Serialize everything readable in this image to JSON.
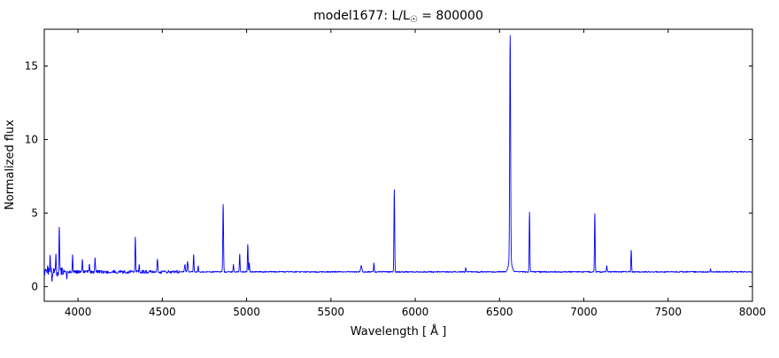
{
  "figure": {
    "background": "#ffffff",
    "axes_color": "#000000"
  },
  "chart_data": {
    "type": "line",
    "title": "model1677: L/L☉ = 800000",
    "title_parts": {
      "prefix": "model1677: L/L",
      "sub": "☉",
      "suffix": " = 800000"
    },
    "xlabel": "Wavelength [ Å ]",
    "ylabel": "Normalized flux",
    "xlim": [
      3800,
      8000
    ],
    "ylim": [
      -1,
      17.5
    ],
    "xticks": [
      4000,
      4500,
      5000,
      5500,
      6000,
      6500,
      7000,
      7500,
      8000
    ],
    "yticks": [
      0,
      5,
      10,
      15
    ],
    "grid": false,
    "legend": "none",
    "line_color": "#0000ff",
    "continuum": 1.0,
    "noise_regions": [
      {
        "below": 3920,
        "amp": 0.55
      },
      {
        "below": 4600,
        "amp": 0.2
      },
      {
        "below": 8001,
        "amp": 0.07
      }
    ],
    "emission_lines": [
      {
        "wavelength": 3820,
        "peak": 1.7,
        "sigma": 1.8
      },
      {
        "wavelength": 3835,
        "peak": 2.0,
        "sigma": 1.8
      },
      {
        "wavelength": 3869,
        "peak": 2.3,
        "sigma": 1.8
      },
      {
        "wavelength": 3889,
        "peak": 4.0,
        "sigma": 2.0
      },
      {
        "wavelength": 3968,
        "peak": 2.1,
        "sigma": 1.8
      },
      {
        "wavelength": 4026,
        "peak": 1.9,
        "sigma": 1.8
      },
      {
        "wavelength": 4068,
        "peak": 1.6,
        "sigma": 1.8
      },
      {
        "wavelength": 4101,
        "peak": 1.9,
        "sigma": 2.0
      },
      {
        "wavelength": 4340,
        "peak": 3.3,
        "sigma": 2.0
      },
      {
        "wavelength": 4363,
        "peak": 1.6,
        "sigma": 1.8
      },
      {
        "wavelength": 4471,
        "peak": 1.9,
        "sigma": 2.0
      },
      {
        "wavelength": 4634,
        "peak": 1.5,
        "sigma": 2.5
      },
      {
        "wavelength": 4650,
        "peak": 1.7,
        "sigma": 2.5
      },
      {
        "wavelength": 4686,
        "peak": 2.2,
        "sigma": 2.0
      },
      {
        "wavelength": 4713,
        "peak": 1.4,
        "sigma": 1.8
      },
      {
        "wavelength": 4861,
        "peak": 5.6,
        "sigma": 2.2
      },
      {
        "wavelength": 4922,
        "peak": 1.5,
        "sigma": 1.8
      },
      {
        "wavelength": 4959,
        "peak": 2.2,
        "sigma": 2.0
      },
      {
        "wavelength": 5007,
        "peak": 2.9,
        "sigma": 2.0
      },
      {
        "wavelength": 5016,
        "peak": 1.6,
        "sigma": 1.8
      },
      {
        "wavelength": 5680,
        "peak": 1.4,
        "sigma": 4.0
      },
      {
        "wavelength": 5755,
        "peak": 1.6,
        "sigma": 2.0
      },
      {
        "wavelength": 5876,
        "peak": 6.6,
        "sigma": 2.2
      },
      {
        "wavelength": 6300,
        "peak": 1.3,
        "sigma": 1.8
      },
      {
        "wavelength": 6563,
        "peak": 16.3,
        "sigma": 2.6
      },
      {
        "wavelength": 6563,
        "peak": 1.8,
        "sigma": 10.0
      },
      {
        "wavelength": 6678,
        "peak": 5.1,
        "sigma": 2.0
      },
      {
        "wavelength": 7065,
        "peak": 5.0,
        "sigma": 2.0
      },
      {
        "wavelength": 7136,
        "peak": 1.4,
        "sigma": 2.0
      },
      {
        "wavelength": 7281,
        "peak": 2.5,
        "sigma": 2.0
      },
      {
        "wavelength": 7751,
        "peak": 1.2,
        "sigma": 1.8
      }
    ],
    "absorption_dips": [
      {
        "wavelength": 3846,
        "depth": 0.55,
        "sigma": 1.5
      },
      {
        "wavelength": 3934,
        "depth": 0.4,
        "sigma": 1.5
      }
    ]
  }
}
